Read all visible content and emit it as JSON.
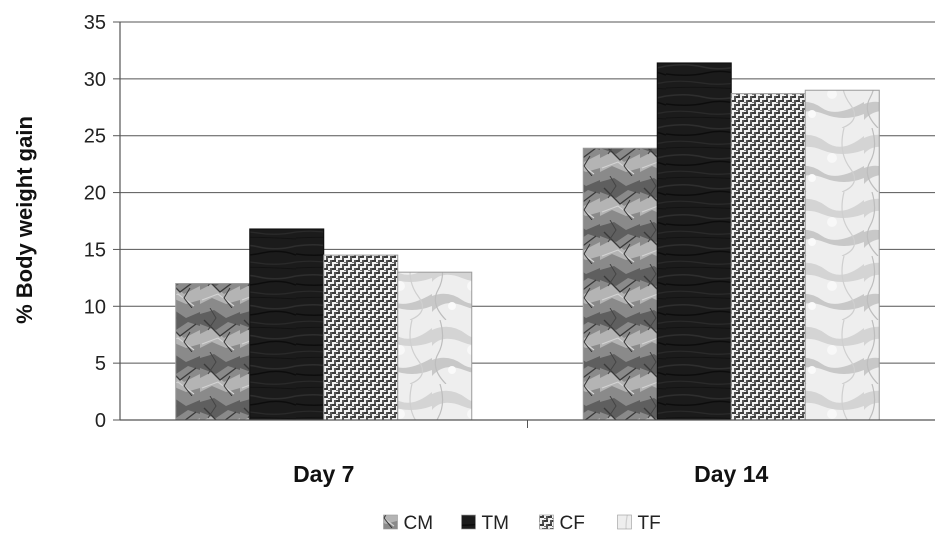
{
  "chart_data": {
    "type": "bar",
    "title": "",
    "xlabel": "",
    "ylabel": "% Body weight gain",
    "ylim": [
      0,
      35
    ],
    "ytick_step": 5,
    "grid": true,
    "legend_position": "bottom-center",
    "categories": [
      "Day 7",
      "Day 14"
    ],
    "series": [
      {
        "name": "CM",
        "values": [
          12,
          23.9
        ],
        "pattern": "crumpled-gray-texture",
        "color": "#7a7a7a"
      },
      {
        "name": "TM",
        "values": [
          16.8,
          31.4
        ],
        "pattern": "dark-wood-texture",
        "color": "#1a1a1a"
      },
      {
        "name": "CF",
        "values": [
          14.5,
          28.7
        ],
        "pattern": "woven-crosshatch-texture",
        "color": "#9a9a9a"
      },
      {
        "name": "TF",
        "values": [
          13,
          29
        ],
        "pattern": "light-marble-texture",
        "color": "#dcdcdc"
      }
    ]
  }
}
